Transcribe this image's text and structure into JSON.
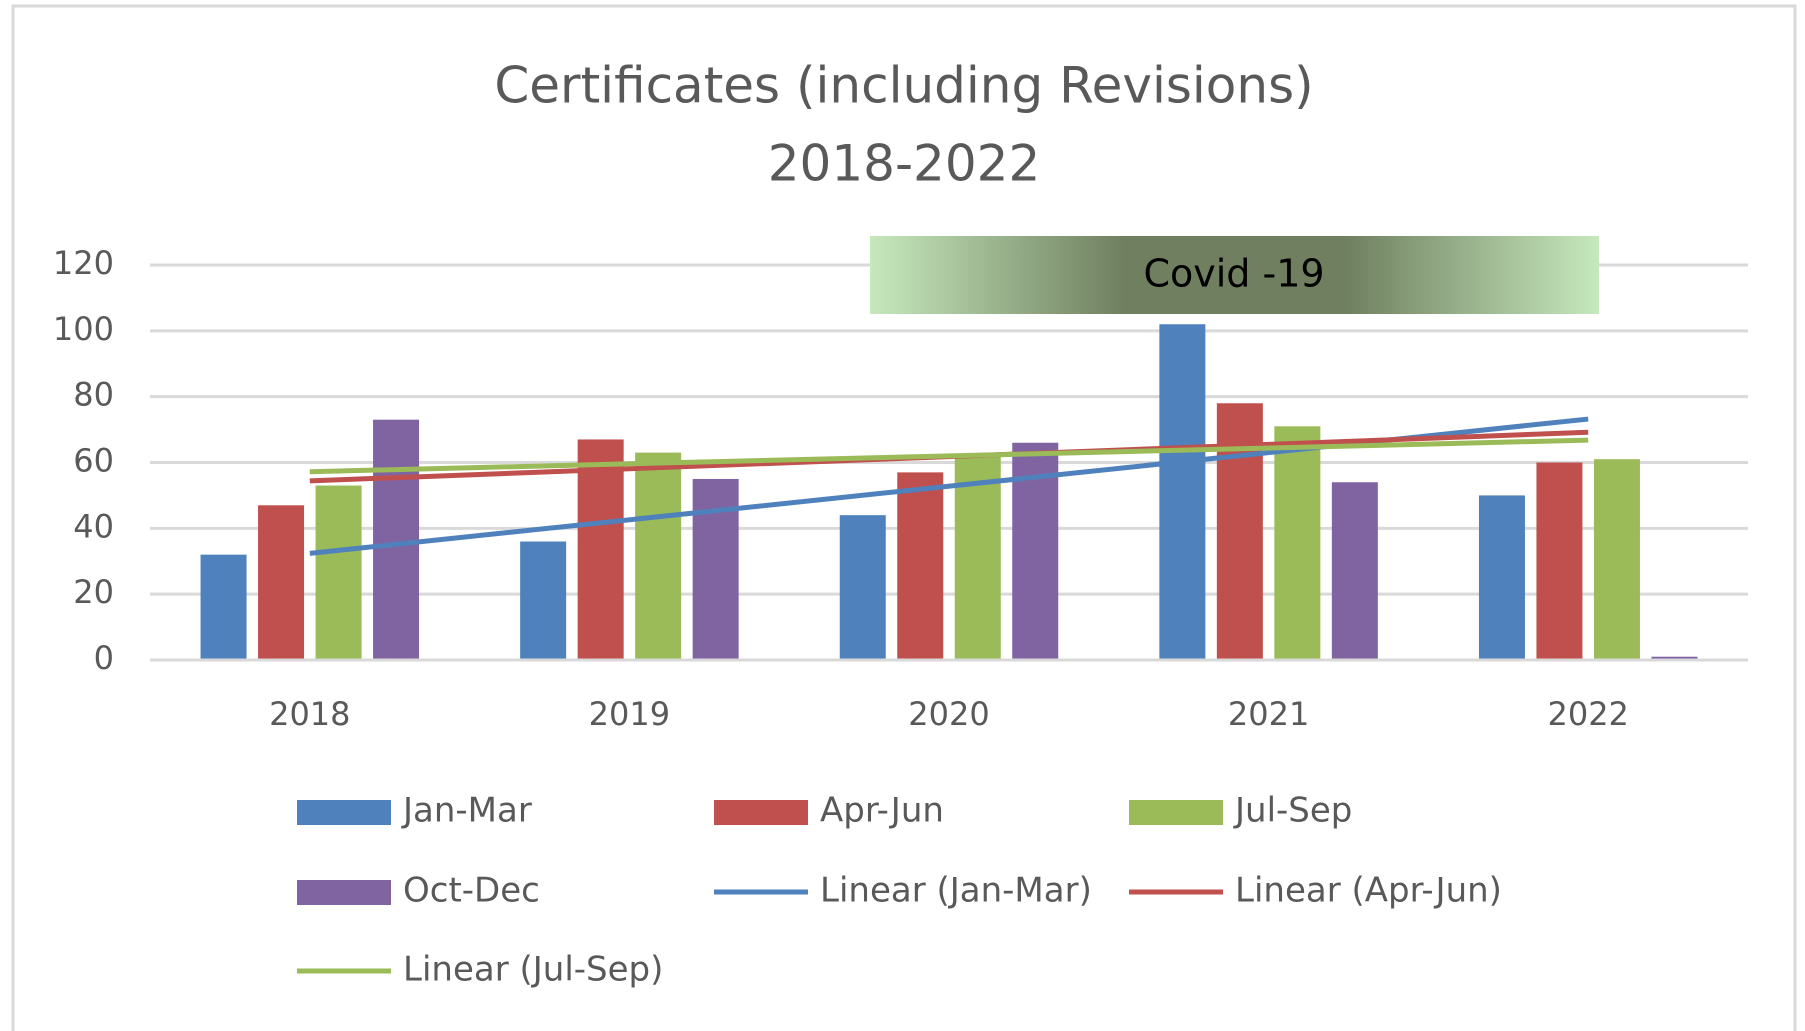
{
  "chart_data": {
    "type": "bar",
    "title": [
      "Certificates (including Revisions)",
      "2018-2022"
    ],
    "categories": [
      "2018",
      "2019",
      "2020",
      "2021",
      "2022"
    ],
    "series": [
      {
        "name": "Jan-Mar",
        "color": "#4f81bd",
        "values": [
          32,
          36,
          44,
          102,
          50
        ]
      },
      {
        "name": "Apr-Jun",
        "color": "#c0504d",
        "values": [
          47,
          67,
          57,
          78,
          60
        ]
      },
      {
        "name": "Jul-Sep",
        "color": "#9bbb59",
        "values": [
          53,
          63,
          62,
          71,
          61
        ]
      },
      {
        "name": "Oct-Dec",
        "color": "#8064a2",
        "values": [
          73,
          55,
          66,
          54,
          1
        ]
      }
    ],
    "trendlines": [
      {
        "name": "Linear (Jan-Mar)",
        "color": "#4f81bd"
      },
      {
        "name": "Linear (Apr-Jun)",
        "color": "#c0504d"
      },
      {
        "name": "Linear (Jul-Sep)",
        "color": "#9bbb59"
      }
    ],
    "annotation": "Covid -19",
    "ylim": [
      0,
      120
    ],
    "yticks": [
      0,
      20,
      40,
      60,
      80,
      100,
      120
    ],
    "grid": true,
    "legend": "bottom"
  }
}
